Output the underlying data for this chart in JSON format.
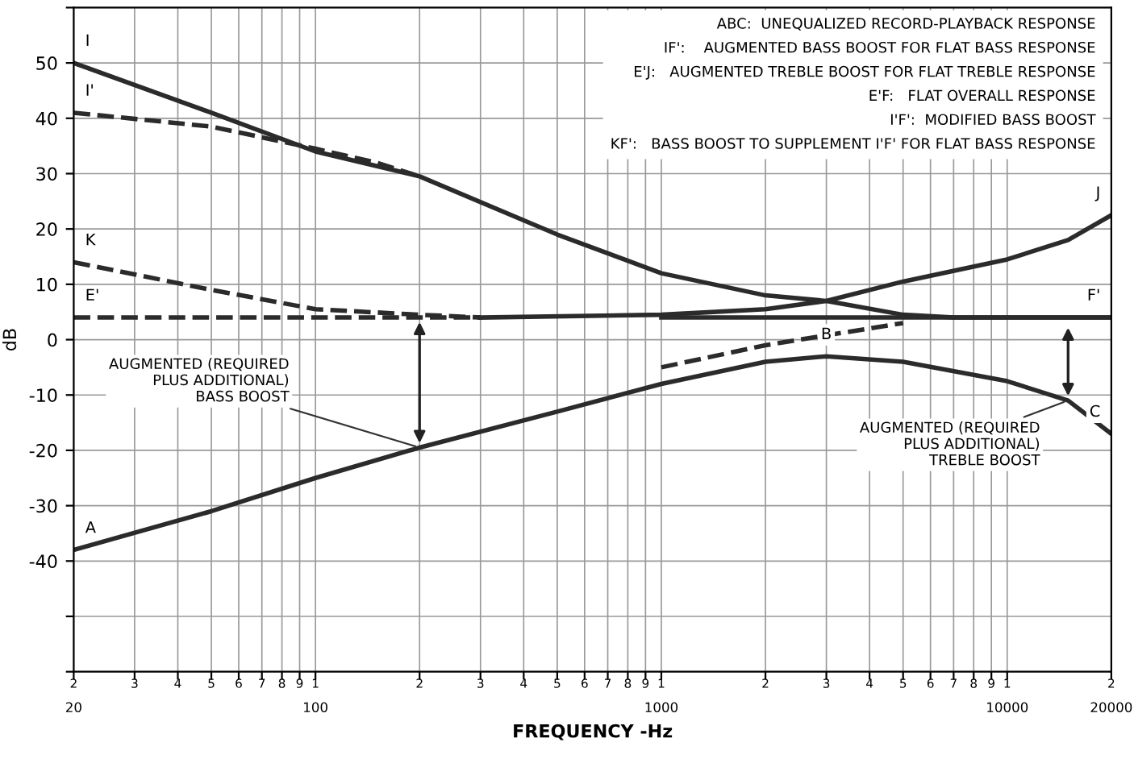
{
  "chart_data": {
    "type": "line",
    "xlabel": "FREQUENCY -Hz",
    "ylabel": "dB",
    "log": "x",
    "grid": true,
    "xlim": [
      20,
      20000
    ],
    "ylim": [
      -60,
      60
    ],
    "xticks": [
      20,
      {
        "value": 30,
        "label": null
      },
      {
        "value": 40,
        "label": null
      },
      {
        "value": 50,
        "label": null
      },
      {
        "value": 60,
        "label": null
      },
      {
        "value": 70,
        "label": null
      },
      {
        "value": 80,
        "label": null
      },
      {
        "value": 90,
        "label": null
      },
      100,
      {
        "value": 200,
        "label": null
      },
      {
        "value": 300,
        "label": null
      },
      {
        "value": 400,
        "label": null
      },
      {
        "value": 500,
        "label": null
      },
      {
        "value": 600,
        "label": null
      },
      {
        "value": 700,
        "label": null
      },
      {
        "value": 800,
        "label": null
      },
      {
        "value": 900,
        "label": null
      },
      1000,
      {
        "value": 2000,
        "label": null
      },
      {
        "value": 3000,
        "label": null
      },
      {
        "value": 4000,
        "label": null
      },
      {
        "value": 5000,
        "label": null
      },
      {
        "value": 6000,
        "label": null
      },
      {
        "value": 7000,
        "label": null
      },
      {
        "value": 8000,
        "label": null
      },
      {
        "value": 9000,
        "label": null
      },
      10000,
      20000
    ],
    "yticks": [
      {
        "value": -60,
        "label": null
      },
      {
        "value": -50,
        "label": null
      },
      -40,
      -30,
      -20,
      -10,
      0,
      10,
      20,
      30,
      40,
      50,
      {
        "value": 60,
        "label": null
      }
    ],
    "series": [
      {
        "color": "#2b2b2b",
        "line_style": "solid",
        "x": [
          20,
          50,
          100,
          200,
          500,
          1000,
          2000,
          3000,
          5000,
          10000,
          15000,
          20000
        ],
        "values": [
          -38,
          -31,
          -25,
          -19.5,
          -13,
          -8,
          -4,
          -3,
          -4,
          -7.5,
          -11,
          -17
        ]
      },
      {
        "color": "#2b2b2b",
        "line_style": "solid",
        "x": [
          20,
          50,
          100,
          200,
          500,
          1000,
          2000,
          3000,
          5000,
          7000,
          10000,
          20000
        ],
        "values": [
          50,
          41,
          34,
          29.5,
          19,
          12,
          8,
          7,
          4.5,
          4,
          4,
          4
        ]
      },
      {
        "color": "#2b2b2b",
        "line_style": "dashed",
        "x": [
          20,
          50,
          100,
          150,
          200
        ],
        "values": [
          41,
          38.5,
          34.5,
          32,
          29.5
        ]
      },
      {
        "color": "#2b2b2b",
        "line_style": "dashed",
        "x": [
          20,
          50,
          100,
          200,
          300
        ],
        "values": [
          14,
          9,
          5.5,
          4.5,
          4
        ]
      },
      {
        "color": "#2b2b2b",
        "line_style": "dashed",
        "x": [
          20,
          300
        ],
        "values": [
          4,
          4
        ]
      },
      {
        "color": "#2b2b2b",
        "line_style": "solid",
        "x": [
          300,
          1000,
          2000,
          3000,
          5000,
          10000,
          15000,
          20000
        ],
        "values": [
          4,
          4.5,
          5.5,
          7,
          10.5,
          14.5,
          18,
          22.5
        ]
      },
      {
        "color": "#2b2b2b",
        "line_style": "solid",
        "x": [
          1000,
          20000
        ],
        "values": [
          4,
          4
        ]
      },
      {
        "color": "#2b2b2b",
        "line_style": "dashed",
        "x": [
          1000,
          2000,
          5000
        ],
        "values": [
          -5,
          -1,
          3
        ]
      }
    ],
    "annotations": [
      "ABC:  UNEQUALIZED RECORD-PLAYBACK RESPONSE\nIF':    AUGMENTED BASS BOOST FOR FLAT BASS RESPONSE\nE'J:   AUGMENTED TREBLE BOOST FOR FLAT TREBLE RESPONSE\nE'F:   FLAT OVERALL RESPONSE\nI'F':  MODIFIED BASS BOOST\nKF':   BASS BOOST TO SUPPLEMENT I'F' FOR FLAT BASS RESPONSE",
      {
        "text": "AUGMENTED (REQUIRED\nPLUS ADDITIONAL)\nBASS BOOST",
        "x": 200,
        "y": -19.5
      },
      {
        "text": "AUGMENTED (REQUIRED\nPLUS ADDITIONAL)\nTREBLE BOOST",
        "x": 15000,
        "y": -11
      },
      {
        "text": "I",
        "x": 20,
        "y": 50
      },
      {
        "text": "I'",
        "x": 20,
        "y": 41
      },
      {
        "text": "K",
        "x": 20,
        "y": 14
      },
      {
        "text": "E'",
        "x": 20,
        "y": 4
      },
      {
        "text": "A",
        "x": 20,
        "y": -38
      },
      {
        "text": "B",
        "x": 3000,
        "y": -3
      },
      {
        "text": "C",
        "x": 20000,
        "y": -17
      },
      {
        "text": "J",
        "x": 20000,
        "y": 22.5
      },
      {
        "text": "F'",
        "x": 20000,
        "y": 4
      },
      "2",
      "3",
      "4",
      "5",
      "6",
      "7",
      "8",
      "9",
      "1",
      "2",
      "3",
      "4",
      "5",
      "6",
      "7",
      "8",
      "9",
      "1",
      "2",
      "3",
      "4",
      "5",
      "6",
      "7",
      "8",
      "9",
      "1",
      "2"
    ]
  }
}
